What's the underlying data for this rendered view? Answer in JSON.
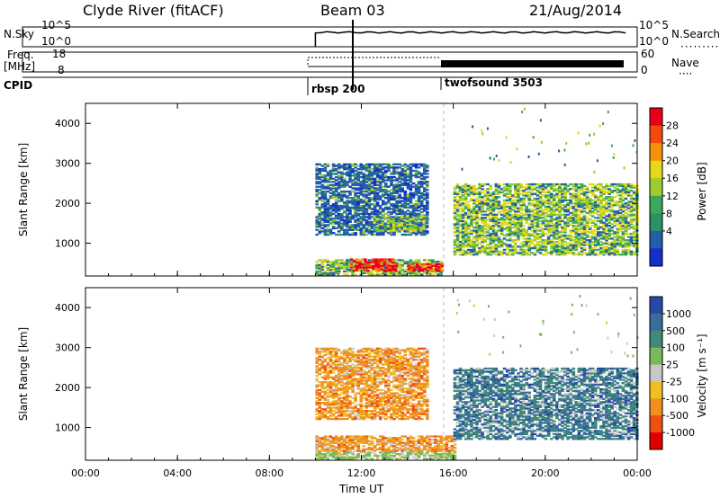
{
  "header": {
    "station": "Clyde River (fitACF)",
    "beam": "Beam 03",
    "date": "21/Aug/2014"
  },
  "strips": {
    "nsky_label": "N.Sky",
    "nsky_ticks": [
      "10^5",
      "10^0"
    ],
    "nsearch_label": "N.Search",
    "nsearch_ticks": [
      "10^5",
      "10^0"
    ],
    "freq_label_1": "Freq.",
    "freq_label_2": "[MHz]",
    "freq_ticks": [
      "18",
      "8"
    ],
    "nave_label": "Nave",
    "nave_ticks": [
      "60",
      "0"
    ],
    "cpid_label": "CPID",
    "cpid_1": "rbsp 200",
    "cpid_2": "twofsound 3503"
  },
  "power_panel": {
    "ylabel": "Slant Range [km]",
    "cbar_label": "Power [dB]",
    "cbar_ticks": [
      "28",
      "24",
      "20",
      "16",
      "12",
      "8",
      "4"
    ],
    "cbar_colors": [
      "#e8001a",
      "#f04a10",
      "#f5920a",
      "#e8d81a",
      "#9ccc2e",
      "#3aaa5a",
      "#2f8f66",
      "#235ea8",
      "#1330c8"
    ]
  },
  "velocity_panel": {
    "ylabel": "Slant Range [km]",
    "cbar_label": "Velocity [m s⁻¹]",
    "cbar_ticks": [
      "1000",
      "500",
      "100",
      "25",
      "-25",
      "-100",
      "-500",
      "-1000"
    ],
    "cbar_colors": [
      "#2848a8",
      "#3a6e9a",
      "#3e8a78",
      "#7ab85a",
      "#c8c8c8",
      "#f0c020",
      "#f09020",
      "#f05010",
      "#e00000"
    ]
  },
  "xaxis": {
    "title": "Time UT",
    "ticks": [
      "00:00",
      "04:00",
      "08:00",
      "12:00",
      "16:00",
      "20:00",
      "00:00"
    ]
  },
  "chart_data": [
    {
      "type": "heatmap",
      "title": "Power",
      "x_range_hours": [
        0,
        24
      ],
      "y_range_km": [
        180,
        4500
      ],
      "ylabel": "Slant Range [km]",
      "xlabel": "Time UT",
      "color_scale": [
        0,
        30
      ],
      "regions": [
        {
          "t0": 10.0,
          "t1": 15.5,
          "r0": 200,
          "r1": 600,
          "level": "mid"
        },
        {
          "t0": 11.5,
          "t1": 13.5,
          "r0": 300,
          "r1": 600,
          "level": "high"
        },
        {
          "t0": 14.0,
          "t1": 15.5,
          "r0": 300,
          "r1": 500,
          "level": "high"
        },
        {
          "t0": 10.0,
          "t1": 14.8,
          "r0": 1200,
          "r1": 3000,
          "level": "low"
        },
        {
          "t0": 12.5,
          "t1": 14.8,
          "r0": 1300,
          "r1": 1700,
          "level": "mid"
        },
        {
          "t0": 16.0,
          "t1": 24.0,
          "r0": 700,
          "r1": 2500,
          "level": "mid"
        }
      ]
    },
    {
      "type": "heatmap",
      "title": "Velocity",
      "x_range_hours": [
        0,
        24
      ],
      "y_range_km": [
        180,
        4500
      ],
      "ylabel": "Slant Range [km]",
      "xlabel": "Time UT",
      "color_scale": [
        -1000,
        1000
      ],
      "regions": [
        {
          "t0": 10.0,
          "t1": 16.0,
          "r0": 200,
          "r1": 400,
          "value": 100
        },
        {
          "t0": 10.0,
          "t1": 16.0,
          "r0": 400,
          "r1": 800,
          "value": -300
        },
        {
          "t0": 10.0,
          "t1": 14.8,
          "r0": 1200,
          "r1": 3000,
          "value": -300
        },
        {
          "t0": 16.0,
          "t1": 24.0,
          "r0": 700,
          "r1": 2500,
          "value": 300
        }
      ]
    }
  ]
}
